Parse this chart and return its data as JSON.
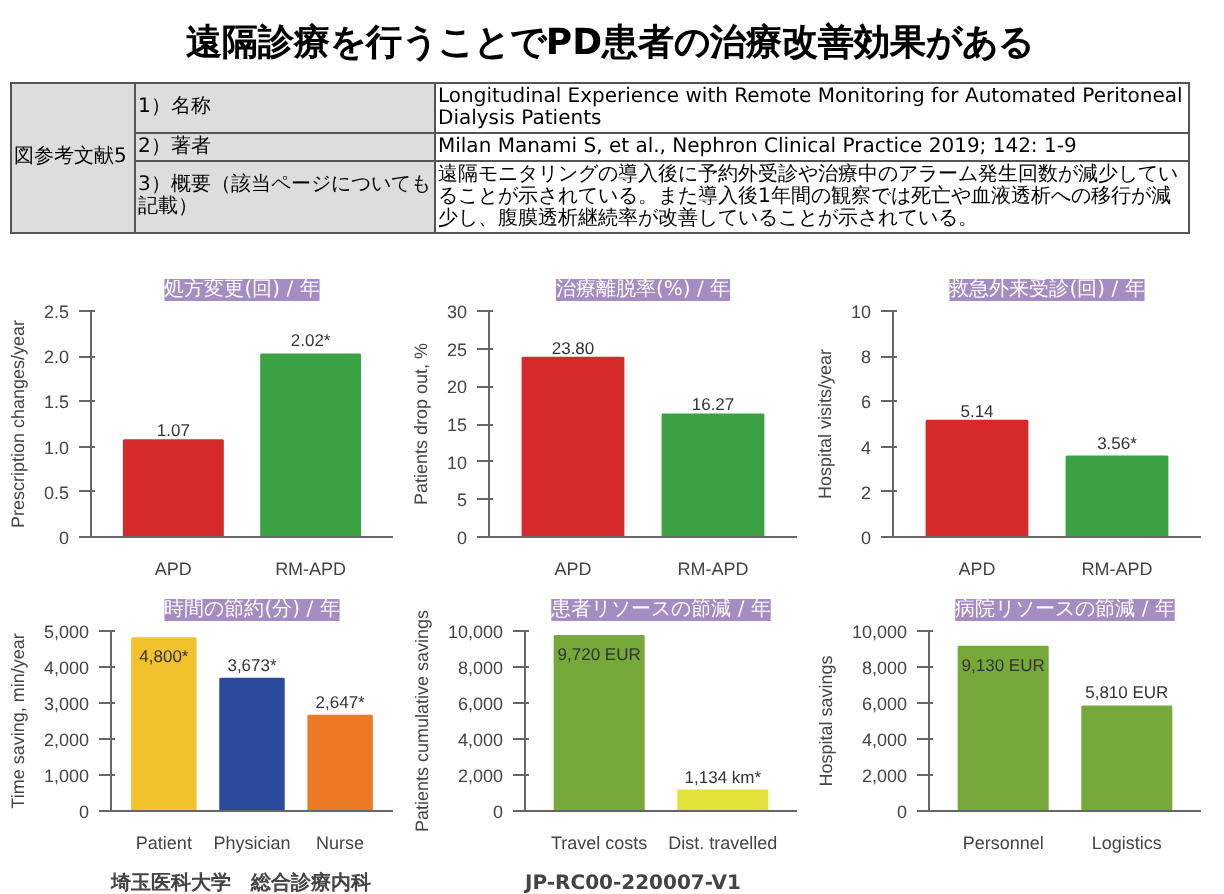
{
  "chart_data": [
    {
      "type": "other",
      "title": "遠隔診療を行うことでPD患者の治療改善効果がある",
      "annotations": [
        "図参考文献5",
        "1）名称",
        "Longitudinal Experience with Remote Monitoring for Automated Peritoneal Dialysis Patients",
        "2）著者",
        "Milan Manami S, et al., Nephron Clinical Practice 2019; 142: 1-9",
        "3）概要（該当ページについても記載）",
        "遠隔モニタリングの導入後に予約外受診や治療中のアラーム発生回数が減少していることが示されている。また導入後1年間の観察では死亡や血液透析への移行が減少し、腹膜透析継続率が改善していることが示されている。"
      ]
    },
    {
      "type": "bar",
      "title": "処方変更(回) / 年",
      "ylabel": "Prescription changes/year",
      "categories": [
        "APD",
        "RM-APD"
      ],
      "values": [
        1.07,
        2.02
      ],
      "colors": [
        "#d62a2a",
        "#3ba344"
      ],
      "value_labels": [
        "1.07",
        "2.02*"
      ],
      "ylim": [
        0,
        2.5
      ],
      "yticks": [
        0,
        0.5,
        {
          "value": 1,
          "label": "1.0"
        },
        1.5,
        {
          "value": 2,
          "label": "2.0"
        },
        2.5
      ]
    },
    {
      "type": "bar",
      "title": "治療離脱率(%) / 年",
      "ylabel": "Patients drop out, %",
      "categories": [
        "APD",
        "RM-APD"
      ],
      "values": [
        23.8,
        16.27
      ],
      "colors": [
        "#d62a2a",
        "#3ba344"
      ],
      "value_labels": [
        "23.80",
        "16.27"
      ],
      "ylim": [
        0,
        30
      ],
      "yticks": [
        0,
        5,
        10,
        15,
        20,
        25,
        30
      ]
    },
    {
      "type": "bar",
      "title": "救急外来受診(回) / 年",
      "ylabel": "Hospital visits/year",
      "categories": [
        "APD",
        "RM-APD"
      ],
      "values": [
        5.14,
        3.56
      ],
      "colors": [
        "#d62a2a",
        "#3ba344"
      ],
      "value_labels": [
        "5.14",
        "3.56*"
      ],
      "ylim": [
        0,
        10
      ],
      "yticks": [
        0,
        2,
        4,
        6,
        8,
        10
      ]
    },
    {
      "type": "bar",
      "title": "時間の節約(分) / 年",
      "ylabel": "Time saving, min/year",
      "categories": [
        "Patient",
        "Physician",
        "Nurse"
      ],
      "values": [
        4800,
        3673,
        2647
      ],
      "colors": [
        "#f2c12e",
        "#2a4a9c",
        "#ec7a25"
      ],
      "value_labels": [
        "4,800*",
        "3,673*",
        "2,647*"
      ],
      "ylim": [
        0,
        5000
      ],
      "yticks": [
        0,
        {
          "value": 1000,
          "label": "1,000"
        },
        {
          "value": 2000,
          "label": "2,000"
        },
        {
          "value": 3000,
          "label": "3,000"
        },
        {
          "value": 4000,
          "label": "4,000"
        },
        {
          "value": 5000,
          "label": "5,000"
        }
      ],
      "annotations": [
        "埼玉医科大学　総合診療内科"
      ]
    },
    {
      "type": "bar",
      "title": "患者リソースの節減 / 年",
      "ylabel": "Patients cumulative savings",
      "categories": [
        "Travel costs",
        "Dist. travelled"
      ],
      "values": [
        9720,
        1134
      ],
      "colors": [
        "#76a83a",
        "#e2e23a"
      ],
      "value_labels": [
        "9,720 EUR",
        "1,134 km*"
      ],
      "ylim": [
        0,
        10000
      ],
      "yticks": [
        0,
        {
          "value": 2000,
          "label": "2,000"
        },
        {
          "value": 4000,
          "label": "4,000"
        },
        {
          "value": 6000,
          "label": "6,000"
        },
        {
          "value": 8000,
          "label": "8,000"
        },
        {
          "value": 10000,
          "label": "10,000"
        }
      ],
      "annotations": [
        "JP-RC00-220007-V1"
      ]
    },
    {
      "type": "bar",
      "title": "病院リソースの節減 / 年",
      "ylabel": "Hospital savings",
      "categories": [
        "Personnel",
        "Logistics"
      ],
      "values": [
        9130,
        5810
      ],
      "colors": [
        "#76a83a",
        "#76a83a"
      ],
      "value_labels": [
        "9,130 EUR",
        "5,810 EUR"
      ],
      "ylim": [
        0,
        10000
      ],
      "yticks": [
        0,
        {
          "value": 2000,
          "label": "2,000"
        },
        {
          "value": 4000,
          "label": "4,000"
        },
        {
          "value": 6000,
          "label": "6,000"
        },
        {
          "value": 8000,
          "label": "8,000"
        },
        {
          "value": 10000,
          "label": "10,000"
        }
      ]
    }
  ]
}
